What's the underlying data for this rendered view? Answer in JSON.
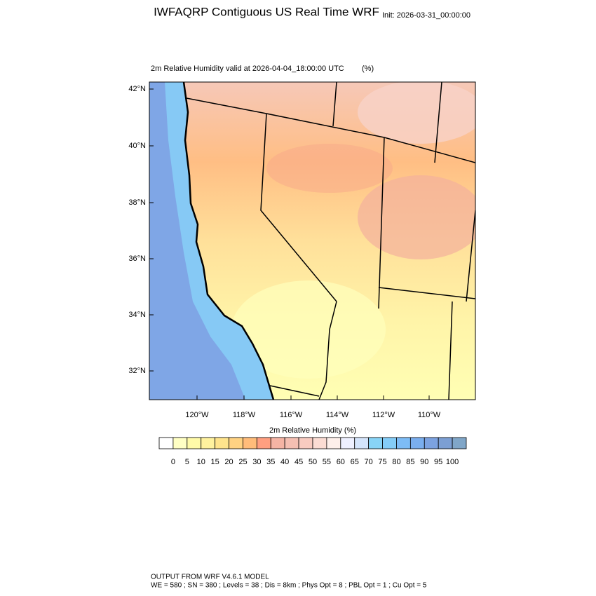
{
  "header": {
    "title": "IWFAQRP Contiguous US Real Time WRF",
    "init": "Init: 2026-03-31_00:00:00"
  },
  "map": {
    "subtitle": "2m Relative Humidity valid at 2026-04-04_18:00:00 UTC",
    "units": "(%)",
    "lat_labels": [
      "42°N",
      "40°N",
      "38°N",
      "36°N",
      "34°N",
      "32°N"
    ],
    "lon_labels": [
      "120°W",
      "118°W",
      "116°W",
      "114°W",
      "112°W",
      "110°W"
    ]
  },
  "colorbar": {
    "title": "2m Relative Humidity  (%)",
    "labels": [
      0,
      5,
      10,
      15,
      20,
      25,
      30,
      35,
      40,
      45,
      50,
      55,
      60,
      65,
      70,
      75,
      80,
      85,
      90,
      95,
      100
    ],
    "colors": [
      "#ffffff",
      "#ffffc4",
      "#fffaa8",
      "#fff29e",
      "#ffe48c",
      "#ffd282",
      "#ffbc7a",
      "#ff9f80",
      "#f5b4a4",
      "#f5bfb2",
      "#f8cbc0",
      "#fbdcd3",
      "#fdefea",
      "#eef0ff",
      "#d4e4fb",
      "#88d4f7",
      "#84cdf8",
      "#7dbcf6",
      "#7aaeee",
      "#7ca2e0",
      "#7c9fd3",
      "#80a6c8"
    ]
  },
  "footer": {
    "line1": "OUTPUT FROM WRF V4.6.1 MODEL",
    "line2": "WE = 580 ; SN = 380 ; Levels = 38 ; Dis = 8km ; Phys Opt = 8 ; PBL Opt = 1 ; Cu Opt = 5"
  }
}
